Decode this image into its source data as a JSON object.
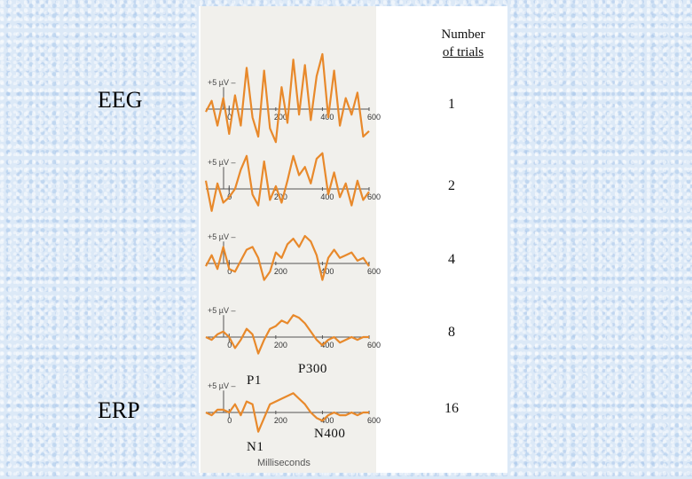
{
  "labels": {
    "eeg": "EEG",
    "erp": "ERP"
  },
  "trials_header": {
    "line1": "Number",
    "line2": "of trials"
  },
  "components": {
    "p1": "P1",
    "p300": "P300",
    "n1": "N1",
    "n400": "N400"
  },
  "xaxis_title": "Milliseconds",
  "chart_data": {
    "type": "line",
    "title": "",
    "xlabel": "Milliseconds",
    "ylabel": "",
    "xlim": [
      -100,
      600
    ],
    "x_ticks": [
      "0",
      "200",
      "400",
      "600"
    ],
    "scale_label": "+5 µV",
    "color": "#e8892b",
    "x": [
      -100,
      -75,
      -50,
      -25,
      0,
      25,
      50,
      75,
      100,
      125,
      150,
      175,
      200,
      225,
      250,
      275,
      300,
      325,
      350,
      375,
      400,
      425,
      450,
      475,
      500,
      525,
      550,
      575,
      600
    ],
    "series": [
      {
        "trials": "1",
        "values": [
          -1,
          3,
          -6,
          4,
          -9,
          5,
          -6,
          15,
          -3,
          -10,
          14,
          -7,
          -12,
          8,
          -5,
          18,
          -2,
          16,
          -4,
          12,
          20,
          -3,
          14,
          -6,
          4,
          -2,
          6,
          -10,
          -8
        ]
      },
      {
        "trials": "2",
        "values": [
          3,
          -8,
          2,
          -5,
          -3,
          0,
          7,
          12,
          -2,
          -6,
          10,
          -4,
          1,
          -5,
          3,
          12,
          5,
          8,
          2,
          11,
          13,
          -2,
          6,
          -3,
          2,
          -6,
          3,
          -4,
          -1
        ]
      },
      {
        "trials": "4",
        "values": [
          -1,
          3,
          -2,
          6,
          -2,
          -3,
          1,
          5,
          6,
          2,
          -6,
          -3,
          4,
          2,
          7,
          9,
          6,
          10,
          8,
          3,
          -6,
          2,
          5,
          2,
          3,
          4,
          1,
          2,
          -1
        ]
      },
      {
        "trials": "8",
        "values": [
          0,
          -1,
          1,
          2,
          0,
          -4,
          -1,
          3,
          1,
          -6,
          -1,
          3,
          4,
          6,
          5,
          8,
          7,
          5,
          2,
          -1,
          -3,
          -1,
          0,
          -2,
          -1,
          0,
          -1,
          0,
          0
        ]
      },
      {
        "trials": "16",
        "values": [
          0,
          -1,
          1,
          1,
          0,
          3,
          -1,
          4,
          3,
          -7,
          -2,
          3,
          4,
          5,
          6,
          7,
          5,
          3,
          0,
          -2,
          -3,
          -1,
          0,
          -1,
          -1,
          0,
          -1,
          0,
          0
        ]
      }
    ]
  }
}
